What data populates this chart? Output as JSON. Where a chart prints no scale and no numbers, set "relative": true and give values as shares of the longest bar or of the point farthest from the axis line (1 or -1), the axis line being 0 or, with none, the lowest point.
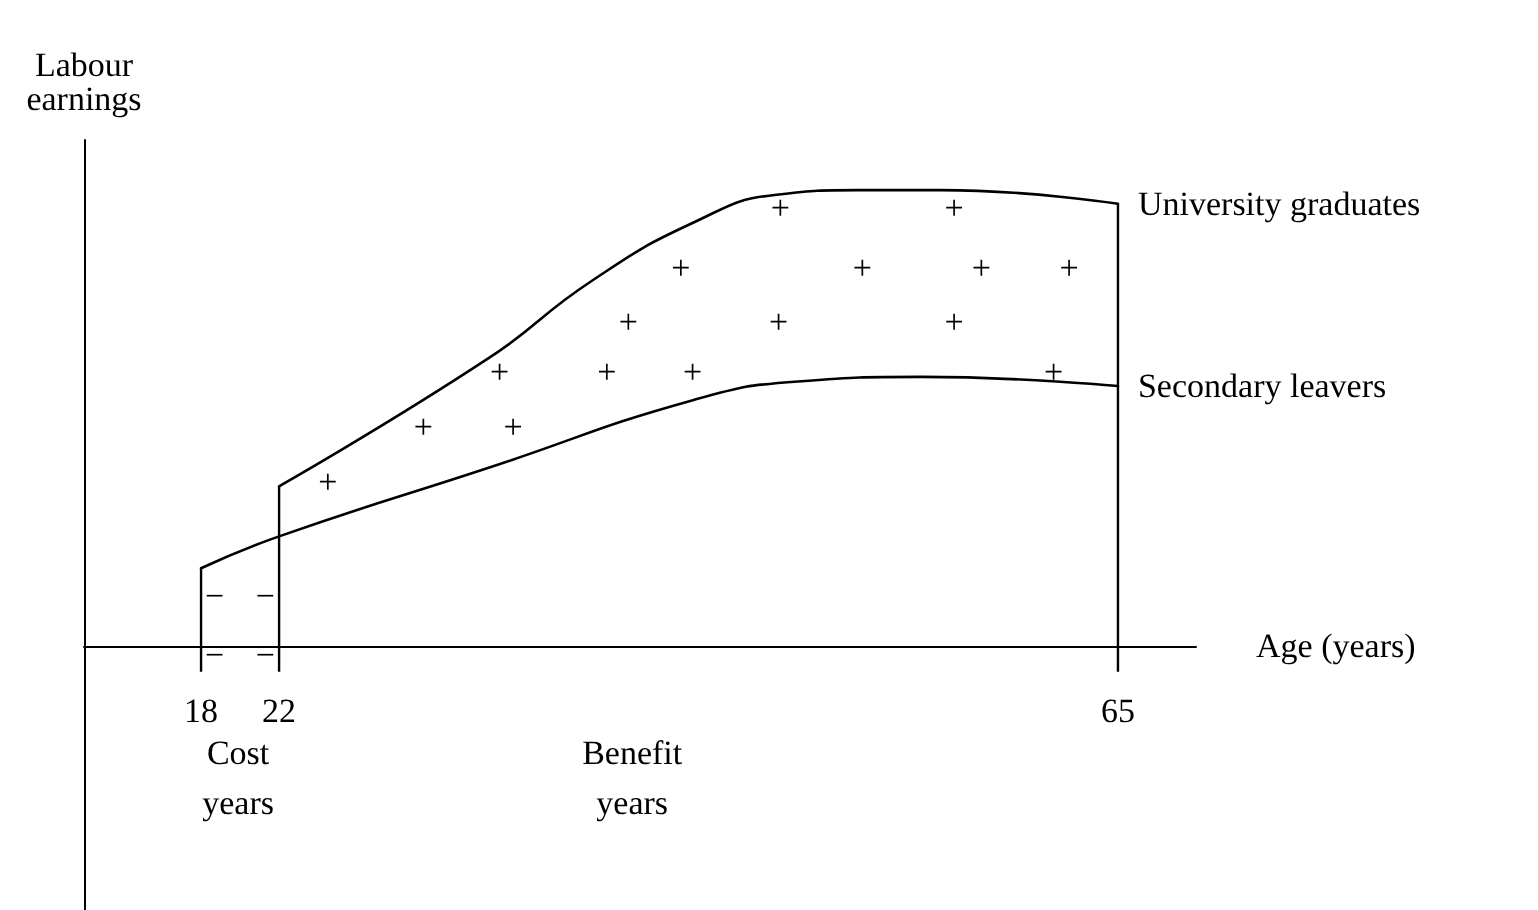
{
  "chart_data": {
    "type": "line",
    "relative": true,
    "ylabel": "Labour earnings",
    "xlabel": "Age (years)",
    "xlim": [
      12,
      69
    ],
    "xticks": [
      18,
      22,
      65
    ],
    "legend": false,
    "grid": false,
    "marker": "none",
    "line_style": "solid",
    "series": [
      {
        "name": "University graduates",
        "color": "#000000",
        "x": [
          22,
          32.7,
          38,
          43.3,
          47.5,
          51.7,
          55.9,
          65
        ],
        "values": [
          0.35,
          0.63,
          0.8,
          0.93,
          0.99,
          1,
          1,
          0.97
        ]
      },
      {
        "name": "Secondary leavers",
        "color": "#000000",
        "x": [
          18,
          22,
          32.7,
          43.3,
          48.6,
          54.9,
          65
        ],
        "values": [
          0.17,
          0.24,
          0.39,
          0.54,
          0.58,
          0.59,
          0.57
        ]
      }
    ],
    "ref_lines": [
      {
        "axis": "x",
        "value": 18,
        "label": null
      },
      {
        "axis": "x",
        "value": 22,
        "label": null
      },
      {
        "axis": "x",
        "value": 65,
        "label": null
      }
    ],
    "annotations": [
      "Cost\nyears",
      "Benefit\nyears",
      "−",
      "−",
      "−",
      "−",
      "+",
      "+",
      "+",
      "+",
      "+",
      "+",
      "+",
      "+",
      "+",
      "+",
      "+",
      "+",
      "+",
      "+",
      "+",
      "+"
    ]
  }
}
